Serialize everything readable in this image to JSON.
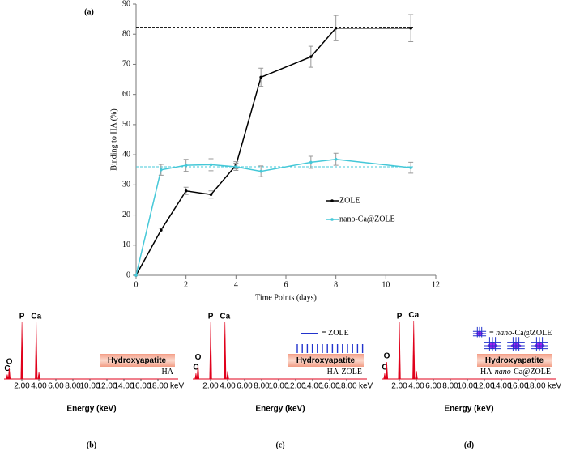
{
  "chart_data": [
    {
      "type": "line",
      "title": "(a)",
      "xlabel": "Time Points (days)",
      "ylabel": "Binding to HA (%)",
      "x": [
        0,
        1,
        2,
        3,
        4,
        5,
        7,
        8,
        11
      ],
      "series": [
        {
          "name": "ZOLE",
          "color": "#000000",
          "values": [
            0,
            15,
            28,
            26.8,
            36.5,
            65.7,
            72.5,
            82,
            82
          ],
          "errors": [
            0,
            0.6,
            1.2,
            1.2,
            1.2,
            3,
            3.5,
            4.2,
            4.5
          ]
        },
        {
          "name": "nano-Ca@ZOLE",
          "color": "#45c8d8",
          "values": [
            0,
            35,
            36.5,
            36.7,
            36,
            34.5,
            37.5,
            38.5,
            35.7
          ],
          "errors": [
            0,
            1.8,
            2,
            2,
            1.2,
            1.8,
            2,
            2,
            1.8
          ]
        }
      ],
      "reference_lines": [
        {
          "value": 82.3,
          "color": "#000000"
        },
        {
          "value": 36,
          "color": "#45c8d8"
        }
      ],
      "xlim": [
        0,
        12
      ],
      "xticks": [
        0,
        2,
        4,
        6,
        8,
        10,
        12
      ],
      "ylim": [
        0,
        90
      ],
      "yticks": [
        0,
        10,
        20,
        30,
        40,
        50,
        60,
        70,
        80,
        90
      ]
    },
    {
      "type": "spectrum",
      "title": "(b)",
      "xlabel": "Energy (keV)",
      "unit": "keV",
      "color": "#e0001b",
      "sample": [
        "HA"
      ],
      "substrate": "Hydroxyapatite",
      "xlim": [
        0,
        20
      ],
      "xticks": [
        {
          "value": 2,
          "label": "2.00"
        },
        {
          "value": 4,
          "label": "4.00"
        },
        {
          "value": 6,
          "label": "6.00"
        },
        {
          "value": 8,
          "label": "8.00"
        },
        {
          "value": 10,
          "label": "10.00"
        },
        {
          "value": 12,
          "label": "12.00"
        },
        {
          "value": 14,
          "label": "14.00"
        },
        {
          "value": 16,
          "label": "16.00"
        },
        {
          "value": 18,
          "label": "18.00"
        }
      ],
      "peaks": [
        {
          "label": "C",
          "x": 0.28,
          "height": 8
        },
        {
          "label": "O",
          "x": 0.52,
          "height": 20
        },
        {
          "label": "P",
          "x": 2.01,
          "height": 100
        },
        {
          "label": "Ca",
          "x": 3.69,
          "height": 100
        },
        {
          "label": null,
          "x": 4.01,
          "height": 12
        }
      ]
    },
    {
      "type": "spectrum",
      "title": "(c)",
      "xlabel": "Energy (keV)",
      "unit": "keV",
      "color": "#e0001b",
      "sample": [
        "HA-ZOLE"
      ],
      "substrate": "Hydroxyapatite",
      "legend": [
        "≡ ZOLE"
      ],
      "xlim": [
        0,
        20
      ],
      "xticks": [
        {
          "value": 2,
          "label": "2.00"
        },
        {
          "value": 4,
          "label": "4.00"
        },
        {
          "value": 6,
          "label": "6.00"
        },
        {
          "value": 8,
          "label": "8.00"
        },
        {
          "value": 10,
          "label": "10.00"
        },
        {
          "value": 12,
          "label": "12.00"
        },
        {
          "value": 14,
          "label": "14.00"
        },
        {
          "value": 16,
          "label": "16.00"
        },
        {
          "value": 18,
          "label": "18.00"
        }
      ],
      "peaks": [
        {
          "label": "C",
          "x": 0.28,
          "height": 10
        },
        {
          "label": "O",
          "x": 0.52,
          "height": 28
        },
        {
          "label": "P",
          "x": 2.01,
          "height": 100
        },
        {
          "label": "Ca",
          "x": 3.69,
          "height": 100
        },
        {
          "label": null,
          "x": 4.01,
          "height": 14
        }
      ]
    },
    {
      "type": "spectrum",
      "title": "(d)",
      "xlabel": "Energy (keV)",
      "unit": "keV",
      "color": "#e0001b",
      "sample": [
        "HA-",
        "nano",
        "-Ca@ZOLE"
      ],
      "substrate": "Hydroxyapatite",
      "legend": [
        "≡ ",
        "nano",
        "-Ca@ZOLE"
      ],
      "xlim": [
        0,
        20
      ],
      "xticks": [
        {
          "value": 2,
          "label": "2.00"
        },
        {
          "value": 4,
          "label": "4.00"
        },
        {
          "value": 6,
          "label": "6.00"
        },
        {
          "value": 8,
          "label": "8.00"
        },
        {
          "value": 10,
          "label": "10.00"
        },
        {
          "value": 12,
          "label": "12.00"
        },
        {
          "value": 14,
          "label": "14.00"
        },
        {
          "value": 16,
          "label": "16.00"
        },
        {
          "value": 18,
          "label": "18.00"
        }
      ],
      "peaks": [
        {
          "label": "C",
          "x": 0.28,
          "height": 10
        },
        {
          "label": "O",
          "x": 0.52,
          "height": 30
        },
        {
          "label": "P",
          "x": 2.01,
          "height": 100
        },
        {
          "label": "Ca",
          "x": 3.69,
          "height": 102
        },
        {
          "label": null,
          "x": 4.01,
          "height": 14
        }
      ]
    }
  ]
}
